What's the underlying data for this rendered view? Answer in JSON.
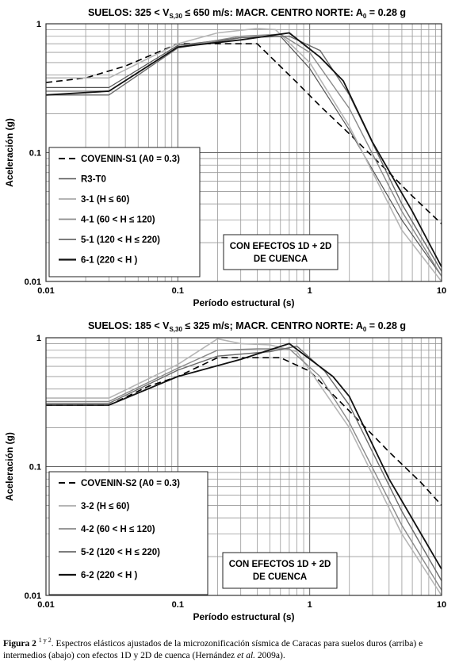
{
  "charts": [
    {
      "type": "line",
      "title": "SUELOS: 325 < Vs,30 ≤ 650 m/s:  MACR. CENTRO NORTE: A0 = 0.28 g",
      "title_parts": {
        "a": "SUELOS: 325 < V",
        "sub": "S,30",
        "b": " ≤ 650 m/s:  MACR. CENTRO NORTE: A",
        "sub2": "0",
        "c": " = 0.28 g"
      },
      "xlabel": "Período estructural (s)",
      "ylabel": "Aceleración (g)",
      "x_scale": "log",
      "y_scale": "log",
      "xlim": [
        0.01,
        10
      ],
      "ylim": [
        0.01,
        1
      ],
      "x_ticks": [
        "0.01",
        "0.1",
        "1",
        "10"
      ],
      "y_ticks": [
        "1",
        "0.1",
        "0.01"
      ],
      "grid": true,
      "legend_position": "left",
      "annotation": [
        "CON EFECTOS 1D + 2D",
        "DE CUENCA"
      ],
      "series": [
        {
          "name": "COVENIN-S1 (A0 = 0.3)",
          "color": "#000000",
          "dash": "8,5",
          "width": 1.6,
          "points": [
            [
              0.01,
              0.35
            ],
            [
              0.02,
              0.38
            ],
            [
              0.04,
              0.47
            ],
            [
              0.06,
              0.56
            ],
            [
              0.1,
              0.7
            ],
            [
              0.4,
              0.7
            ],
            [
              0.8,
              0.35
            ],
            [
              1.2,
              0.23
            ],
            [
              2,
              0.14
            ],
            [
              4,
              0.07
            ],
            [
              6,
              0.046
            ],
            [
              10,
              0.028
            ]
          ]
        },
        {
          "name": "R3-T0",
          "color": "#555555",
          "dash": "",
          "width": 1.2,
          "points": [
            [
              0.01,
              0.32
            ],
            [
              0.03,
              0.32
            ],
            [
              0.1,
              0.68
            ],
            [
              0.3,
              0.78
            ],
            [
              0.6,
              0.8
            ],
            [
              1,
              0.45
            ],
            [
              2,
              0.15
            ],
            [
              5,
              0.03
            ],
            [
              10,
              0.011
            ]
          ]
        },
        {
          "name": "3-1 (H ≤ 60)",
          "color": "#b5b5b5",
          "dash": "",
          "width": 1.6,
          "points": [
            [
              0.01,
              0.38
            ],
            [
              0.03,
              0.38
            ],
            [
              0.1,
              0.7
            ],
            [
              0.2,
              0.85
            ],
            [
              0.4,
              0.92
            ],
            [
              0.55,
              0.9
            ],
            [
              1,
              0.5
            ],
            [
              2,
              0.16
            ],
            [
              5,
              0.025
            ],
            [
              10,
              0.01
            ]
          ]
        },
        {
          "name": "4-1 (60 < H ≤ 120)",
          "color": "#8a8a8a",
          "dash": "",
          "width": 1.4,
          "points": [
            [
              0.01,
              0.3
            ],
            [
              0.03,
              0.3
            ],
            [
              0.1,
              0.66
            ],
            [
              0.3,
              0.8
            ],
            [
              0.6,
              0.83
            ],
            [
              1,
              0.6
            ],
            [
              2,
              0.22
            ],
            [
              5,
              0.035
            ],
            [
              10,
              0.011
            ]
          ]
        },
        {
          "name": "5-1 (120 < H ≤ 220)",
          "color": "#6a6a6a",
          "dash": "",
          "width": 1.4,
          "points": [
            [
              0.01,
              0.28
            ],
            [
              0.03,
              0.28
            ],
            [
              0.1,
              0.65
            ],
            [
              0.3,
              0.78
            ],
            [
              0.7,
              0.8
            ],
            [
              1.2,
              0.62
            ],
            [
              2,
              0.28
            ],
            [
              5,
              0.04
            ],
            [
              10,
              0.012
            ]
          ]
        },
        {
          "name": "6-1 (220 < H )",
          "color": "#111111",
          "dash": "",
          "width": 1.8,
          "points": [
            [
              0.01,
              0.28
            ],
            [
              0.03,
              0.3
            ],
            [
              0.1,
              0.66
            ],
            [
              0.3,
              0.75
            ],
            [
              0.7,
              0.85
            ],
            [
              1.2,
              0.55
            ],
            [
              1.8,
              0.36
            ],
            [
              3,
              0.12
            ],
            [
              6,
              0.035
            ],
            [
              10,
              0.013
            ]
          ]
        }
      ]
    },
    {
      "type": "line",
      "title": "SUELOS: 185 < Vs,30 ≤ 325 m/s; MACR. CENTRO NORTE: A0 = 0.28 g",
      "title_parts": {
        "a": "SUELOS: 185 < V",
        "sub": "S,30",
        "b": " ≤ 325 m/s; MACR. CENTRO NORTE: A",
        "sub2": "0",
        "c": " = 0.28 g"
      },
      "xlabel": "Período estructural (s)",
      "ylabel": "Aceleración (g)",
      "x_scale": "log",
      "y_scale": "log",
      "xlim": [
        0.01,
        10
      ],
      "ylim": [
        0.01,
        1
      ],
      "x_ticks": [
        "0.01",
        "0.1",
        "1",
        "10"
      ],
      "y_ticks": [
        "1",
        "0.1",
        "0.01"
      ],
      "grid": true,
      "legend_position": "left",
      "annotation": [
        "CON EFECTOS 1D + 2D",
        "DE CUENCA"
      ],
      "series": [
        {
          "name": "COVENIN-S2 (A0 = 0.3)",
          "color": "#000000",
          "dash": "8,5",
          "width": 1.6,
          "points": [
            [
              0.01,
              0.3
            ],
            [
              0.03,
              0.3
            ],
            [
              0.06,
              0.42
            ],
            [
              0.1,
              0.5
            ],
            [
              0.2,
              0.7
            ],
            [
              0.6,
              0.7
            ],
            [
              1,
              0.55
            ],
            [
              2,
              0.27
            ],
            [
              4,
              0.13
            ],
            [
              7,
              0.075
            ],
            [
              10,
              0.05
            ]
          ]
        },
        {
          "name": "3-2 (H ≤ 60)",
          "color": "#b5b5b5",
          "dash": "",
          "width": 1.6,
          "points": [
            [
              0.01,
              0.34
            ],
            [
              0.03,
              0.34
            ],
            [
              0.1,
              0.62
            ],
            [
              0.2,
              0.98
            ],
            [
              0.3,
              0.9
            ],
            [
              0.5,
              0.88
            ],
            [
              0.8,
              0.78
            ],
            [
              2,
              0.2
            ],
            [
              5,
              0.03
            ],
            [
              10,
              0.01
            ]
          ]
        },
        {
          "name": "4-2 (60 < H ≤ 120)",
          "color": "#8a8a8a",
          "dash": "",
          "width": 1.4,
          "points": [
            [
              0.01,
              0.32
            ],
            [
              0.03,
              0.32
            ],
            [
              0.1,
              0.58
            ],
            [
              0.2,
              0.8
            ],
            [
              0.4,
              0.82
            ],
            [
              0.7,
              0.82
            ],
            [
              1.2,
              0.5
            ],
            [
              2,
              0.22
            ],
            [
              5,
              0.035
            ],
            [
              10,
              0.011
            ]
          ]
        },
        {
          "name": "5-2 (120 < H ≤ 220)",
          "color": "#6a6a6a",
          "dash": "",
          "width": 1.4,
          "points": [
            [
              0.01,
              0.31
            ],
            [
              0.03,
              0.31
            ],
            [
              0.1,
              0.56
            ],
            [
              0.2,
              0.72
            ],
            [
              0.5,
              0.78
            ],
            [
              0.8,
              0.86
            ],
            [
              1.3,
              0.55
            ],
            [
              2,
              0.3
            ],
            [
              5,
              0.045
            ],
            [
              10,
              0.013
            ]
          ]
        },
        {
          "name": "6-2 (220 < H )",
          "color": "#111111",
          "dash": "",
          "width": 1.8,
          "points": [
            [
              0.01,
              0.3
            ],
            [
              0.03,
              0.3
            ],
            [
              0.1,
              0.5
            ],
            [
              0.3,
              0.68
            ],
            [
              0.7,
              0.9
            ],
            [
              1.5,
              0.5
            ],
            [
              2,
              0.35
            ],
            [
              4,
              0.08
            ],
            [
              7,
              0.03
            ],
            [
              10,
              0.016
            ]
          ]
        }
      ]
    }
  ],
  "caption": {
    "label": "Figura 2",
    "sup": "1 y 2",
    "text_a": ". Espectros elásticos ajustados de la microzonificación sísmica de Caracas para suelos duros (arriba) e intermedios (abajo) con efectos 1D y 2D de cuenca (Hernández ",
    "italic": "et al.",
    "text_b": " 2009a)."
  }
}
